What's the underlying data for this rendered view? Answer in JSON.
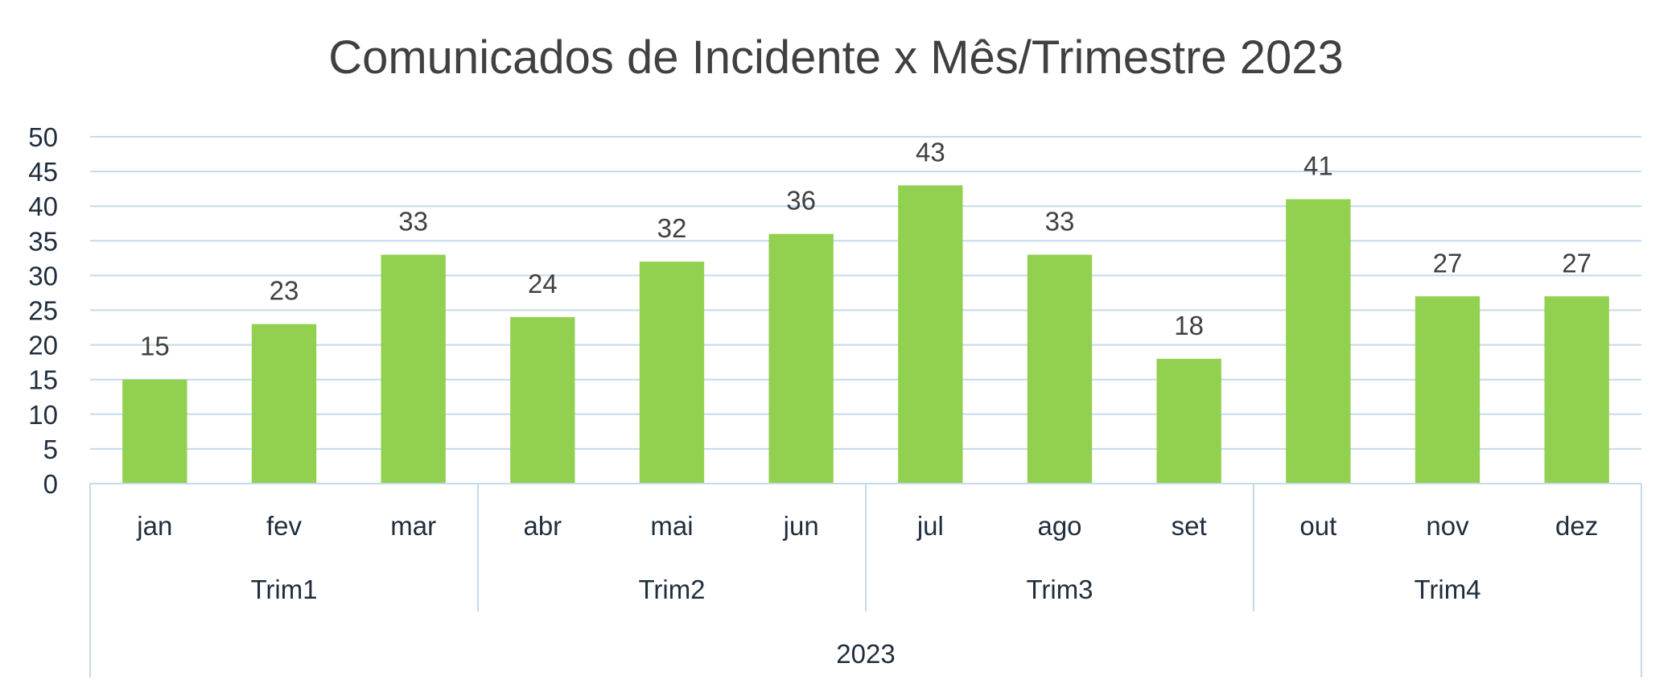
{
  "chart_data": {
    "type": "bar",
    "title": "Comunicados de Incidente x Mês/Trimestre 2023",
    "xlabel": "",
    "ylabel": "",
    "ylim": [
      0,
      50
    ],
    "yticks": [
      0,
      5,
      10,
      15,
      20,
      25,
      30,
      35,
      40,
      45,
      50
    ],
    "grid": true,
    "legend": "none",
    "categories": [
      "jan",
      "fev",
      "mar",
      "abr",
      "mai",
      "jun",
      "jul",
      "ago",
      "set",
      "out",
      "nov",
      "dez"
    ],
    "values": [
      15,
      23,
      33,
      24,
      32,
      36,
      43,
      33,
      18,
      41,
      27,
      27
    ],
    "quarters": [
      {
        "label": "Trim1",
        "months": 3
      },
      {
        "label": "Trim2",
        "months": 3
      },
      {
        "label": "Trim3",
        "months": 3
      },
      {
        "label": "Trim4",
        "months": 3
      }
    ],
    "year_label": "2023",
    "bar_color": "#92d050",
    "grid_color": "#c5daea",
    "axis_color": "#c5daea"
  }
}
